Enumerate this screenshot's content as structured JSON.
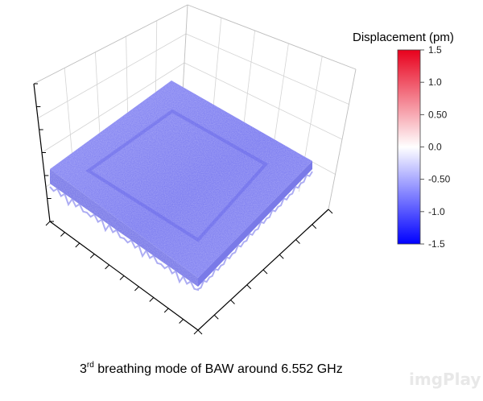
{
  "chart_data": {
    "type": "surface3d",
    "title": "",
    "caption": {
      "prefix": "3",
      "superscript": "rd",
      "suffix": " breathing mode of BAW around 6.552 GHz"
    },
    "colorbar": {
      "title": "Displacement (pm)",
      "ticks": [
        "1.5",
        "1.0",
        "0.50",
        "0.0",
        "-0.50",
        "-1.0",
        "-1.5"
      ],
      "range": [
        -1.5,
        1.5
      ],
      "colors": {
        "max": "#e8001c",
        "mid": "#ffffff",
        "min": "#0000ff"
      }
    },
    "surface": {
      "approx_displacement_pm": -0.7,
      "color": "#6b6bf0"
    },
    "grid": true
  },
  "watermark": "imgPlay"
}
